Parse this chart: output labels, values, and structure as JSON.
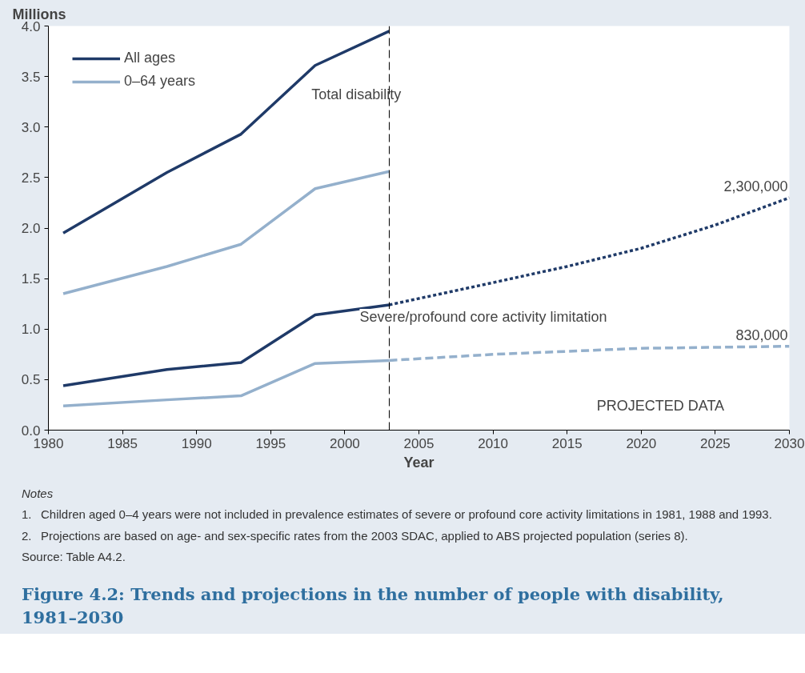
{
  "chart_data": {
    "type": "line",
    "title": "Figure 4.2: Trends and projections in the number of people with disability, 1981–2030",
    "ylabel": "Millions",
    "xlabel": "Year",
    "xlim": [
      1980,
      2030
    ],
    "xticks": [
      1980,
      1985,
      1990,
      1995,
      2000,
      2005,
      2010,
      2015,
      2020,
      2025,
      2030
    ],
    "ylim": [
      0,
      4
    ],
    "yticks": [
      {
        "value": 0,
        "label": "0.0"
      },
      {
        "value": 0.5,
        "label": "0.5"
      },
      {
        "value": 1,
        "label": "1.0"
      },
      {
        "value": 1.5,
        "label": "1.5"
      },
      {
        "value": 2,
        "label": "2.0"
      },
      {
        "value": 2.5,
        "label": "2.5"
      },
      {
        "value": 3,
        "label": "3.0"
      },
      {
        "value": 3.5,
        "label": "3.5"
      },
      {
        "value": 4,
        "label": "4.0"
      }
    ],
    "grid": false,
    "legend": "top left",
    "marker": "none",
    "series": [
      {
        "name": "All ages",
        "color": "#1f3a68",
        "line_style": "solid",
        "x": [
          1981,
          1988,
          1993,
          1998,
          2003
        ],
        "values": [
          1.95,
          2.55,
          2.93,
          3.61,
          3.95
        ]
      },
      {
        "name": "0–64 years",
        "color": "#94b0cc",
        "line_style": "solid",
        "x": [
          1981,
          1988,
          1993,
          1998,
          2003
        ],
        "values": [
          1.35,
          1.62,
          1.84,
          2.39,
          2.56
        ]
      },
      {
        "color": "#1f3a68",
        "line_style": "solid",
        "x": [
          1981,
          1988,
          1993,
          1998,
          2003
        ],
        "values": [
          0.44,
          0.6,
          0.67,
          1.14,
          1.24
        ]
      },
      {
        "color": "#94b0cc",
        "line_style": "solid",
        "x": [
          1981,
          1988,
          1993,
          1998,
          2003
        ],
        "values": [
          0.24,
          0.3,
          0.34,
          0.66,
          0.69
        ]
      },
      {
        "color": "#1f3a68",
        "line_style": "dotted",
        "x": [
          2003,
          2010,
          2015,
          2020,
          2025,
          2030
        ],
        "values": [
          1.24,
          1.46,
          1.62,
          1.8,
          2.03,
          2.3
        ]
      },
      {
        "color": "#94b0cc",
        "line_style": "dashed",
        "x": [
          2003,
          2010,
          2015,
          2020,
          2025,
          2030
        ],
        "values": [
          0.69,
          0.75,
          0.78,
          0.81,
          0.82,
          0.83
        ]
      }
    ],
    "ref_lines": [
      {
        "axis": "x",
        "value": 2003,
        "color": "#000000",
        "line_style": "dashed"
      }
    ],
    "annotations": [
      "Total disability",
      "Severe/profound core activity limitation",
      "PROJECTED DATA",
      {
        "text": "2,300,000",
        "x": 2030,
        "y": 2.3
      },
      {
        "text": "830,000",
        "x": 2030,
        "y": 0.83
      },
      "Notes",
      "1.\tChildren aged 0–4 years were not included in prevalence estimates of severe or profound core activity limitations in 1981, 1988 and 1993.",
      "2.\tProjections are based on age- and sex-specific rates from the 2003 SDAC, applied to ABS projected population (series 8).",
      "Source: Table A4.2."
    ]
  }
}
